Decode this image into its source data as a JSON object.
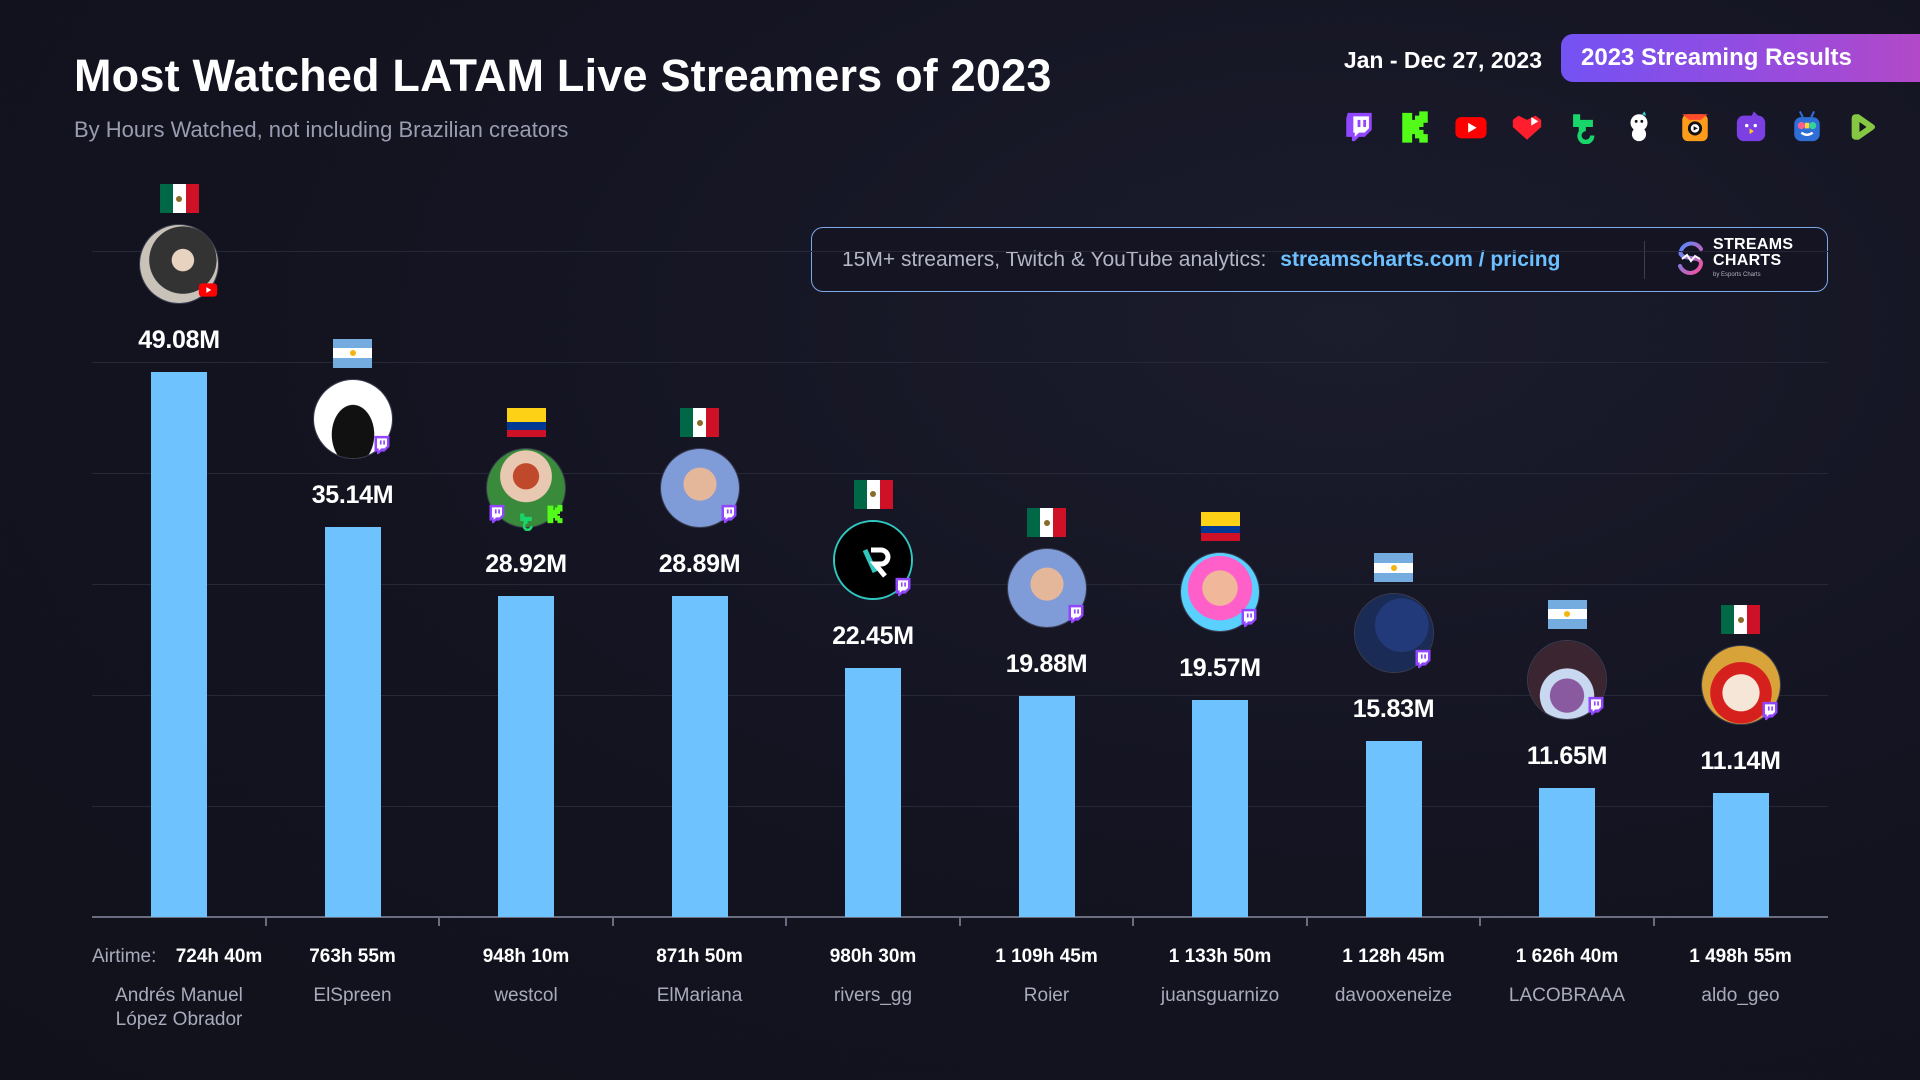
{
  "header": {
    "title": "Most Watched LATAM Live Streamers of 2023",
    "subtitle": "By Hours Watched, not including Brazilian creators",
    "date_range": "Jan - Dec 27, 2023",
    "badge": "2023 Streaming Results",
    "platform_icons": [
      "twitch-icon",
      "kick-icon",
      "youtube-icon",
      "vk-play-icon",
      "trovo-icon",
      "bigo-icon",
      "nimo-icon",
      "booyah-icon",
      "afreeca-icon",
      "rumble-icon"
    ]
  },
  "banner": {
    "text": "15M+ streamers, Twitch & YouTube analytics:",
    "link": "streamscharts.com / pricing",
    "logo_line1": "STREAMS",
    "logo_line2": "CHARTS",
    "logo_tagline": "by Esports Charts"
  },
  "colors": {
    "bar": "#6ec3ff",
    "accent_link": "#6cc0ff",
    "badge_gradient_start": "#7452f3",
    "badge_gradient_end": "#b649c4",
    "background": "#12121d"
  },
  "airtime_prefix": "Airtime:",
  "chart_data": {
    "type": "bar",
    "title": "Most Watched LATAM Live Streamers of 2023",
    "subtitle": "By Hours Watched, not including Brazilian creators",
    "xlabel": "",
    "ylabel": "Hours Watched",
    "unit": "M",
    "ylim": [
      0,
      60
    ],
    "grid": true,
    "categories": [
      "Andrés Manuel López Obrador",
      "ElSpreen",
      "westcol",
      "ElMariana",
      "rivers_gg",
      "Roier",
      "juansguarnizo",
      "davooxeneize",
      "LACOBRAAA",
      "aldo_geo"
    ],
    "values": [
      49.08,
      35.14,
      28.92,
      28.89,
      22.45,
      19.88,
      19.57,
      15.83,
      11.65,
      11.14
    ],
    "value_labels": [
      "49.08M",
      "35.14M",
      "28.92M",
      "28.89M",
      "22.45M",
      "19.88M",
      "19.57M",
      "15.83M",
      "11.65M",
      "11.14M"
    ],
    "streamers": [
      {
        "name_lines": [
          "Andrés Manuel",
          "López Obrador"
        ],
        "airtime": "724h 40m",
        "country": "mexico",
        "platforms": [
          "youtube"
        ],
        "avatar": "amlo"
      },
      {
        "name_lines": [
          "ElSpreen"
        ],
        "airtime": "763h 55m",
        "country": "argentina",
        "platforms": [
          "twitch"
        ],
        "avatar": "silhouette"
      },
      {
        "name_lines": [
          "westcol"
        ],
        "airtime": "948h 10m",
        "country": "colombia",
        "platforms": [
          "twitch",
          "trovo",
          "kick"
        ],
        "avatar": "cartoon-cap"
      },
      {
        "name_lines": [
          "ElMariana"
        ],
        "airtime": "871h 50m",
        "country": "mexico",
        "platforms": [
          "twitch"
        ],
        "avatar": "photo"
      },
      {
        "name_lines": [
          "rivers_gg"
        ],
        "airtime": "980h 30m",
        "country": "mexico",
        "platforms": [
          "twitch"
        ],
        "avatar": "logo-r"
      },
      {
        "name_lines": [
          "Roier"
        ],
        "airtime": "1 109h 45m",
        "country": "mexico",
        "platforms": [
          "twitch"
        ],
        "avatar": "photo"
      },
      {
        "name_lines": [
          "juansguarnizo"
        ],
        "airtime": "1 133h 50m",
        "country": "colombia",
        "platforms": [
          "twitch"
        ],
        "avatar": "cartoon"
      },
      {
        "name_lines": [
          "davooxeneize"
        ],
        "airtime": "1 128h 45m",
        "country": "argentina",
        "platforms": [
          "twitch"
        ],
        "avatar": "football"
      },
      {
        "name_lines": [
          "LACOBRAAA"
        ],
        "airtime": "1 626h 40m",
        "country": "argentina",
        "platforms": [
          "twitch"
        ],
        "avatar": "art"
      },
      {
        "name_lines": [
          "aldo_geo"
        ],
        "airtime": "1 498h 55m",
        "country": "mexico",
        "platforms": [
          "twitch"
        ],
        "avatar": "cartoon-red-cap"
      }
    ]
  }
}
